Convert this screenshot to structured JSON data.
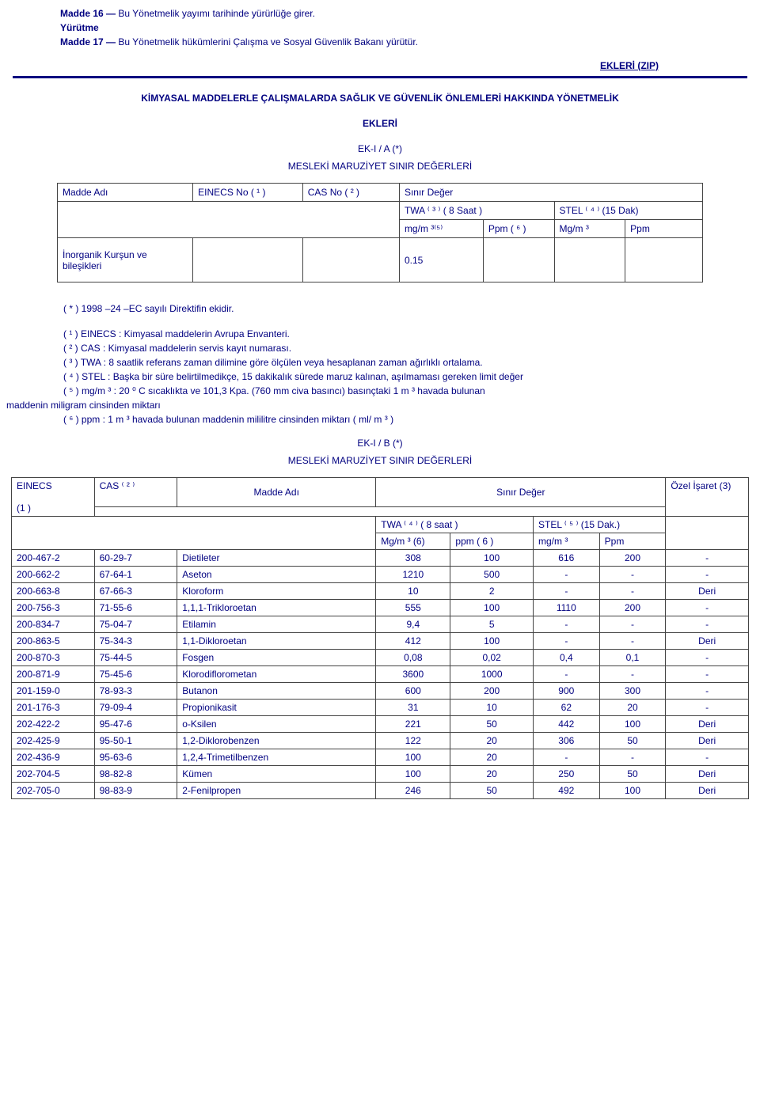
{
  "intro": {
    "p1_bold": "Madde 16 —",
    "p1_text": " Bu Yönetmelik yayımı tarihinde yürürlüğe girer.",
    "p2": "Yürütme",
    "p3_bold": "Madde 17 —",
    "p3_text": " Bu Yönetmelik hükümlerini Çalışma ve Sosyal Güvenlik Bakanı yürütür."
  },
  "zip_label": "EKLERİ (ZIP)",
  "title_main": "KİMYASAL MADDELERLE ÇALIŞMALARDA SAĞLIK VE GÜVENLİK ÖNLEMLERİ HAKKINDA YÖNETMELİK",
  "title_ekleri": "EKLERİ",
  "section_a_line1": "EK-I / A (*)",
  "section_a_line2": "MESLEKİ MARUZİYET SINIR DEĞERLERİ",
  "table_a": {
    "h_madde": "Madde Adı",
    "h_einecs": "EINECS No ( ¹ )",
    "h_cas": "CAS No ( ² )",
    "h_sinir": "Sınır Değer",
    "h_twa": "TWA ⁽ ³ ⁾ ( 8 Saat )",
    "h_stel": "STEL ⁽ ⁴ ⁾ (15 Dak)",
    "h_mgm1": "mg/m ³⁽⁵⁾",
    "h_ppm1": "Ppm ( ⁶ )",
    "h_mgm2": "Mg/m ³",
    "h_ppm2": "Ppm",
    "row_label": "İnorganik Kurşun ve bileşikleri",
    "row_val": "0.15"
  },
  "notes": {
    "n0": "( * ) 1998 –24 –EC sayılı Direktifin ekidir.",
    "n1": "( ¹ ) EINECS : Kimyasal maddelerin Avrupa Envanteri.",
    "n2": "( ² ) CAS : Kimyasal maddelerin servis kayıt numarası.",
    "n3": "( ³ ) TWA : 8 saatlik referans zaman dilimine göre ölçülen veya hesaplanan zaman ağırlıklı ortalama.",
    "n4": "( ⁴ ) STEL : Başka bir süre belirtilmedikçe, 15 dakikalık sürede maruz kalınan, aşılmaması gereken limit değer",
    "n5a": "( ⁵ ) mg/m ³ : 20 ⁰ C sıcaklıkta ve 101,3 Kpa. (760 mm civa basıncı) basınçtaki 1 m ³ havada bulunan",
    "n5b": "maddenin miligram cinsinden miktarı",
    "n6": "( ⁶ ) ppm : 1 m ³ havada bulunan maddenin mililitre cinsinden miktarı ( ml/ m ³ )"
  },
  "section_b_line1": "EK-I / B (*)",
  "section_b_line2": "MESLEKİ MARUZİYET SINIR DEĞERLERİ",
  "table_b": {
    "h_einecs": "EINECS",
    "h_einecs_sub": "(1 )",
    "h_cas": "CAS ⁽ ² ⁾",
    "h_madde": "Madde Adı",
    "h_sinir": "Sınır Değer",
    "h_ozel": "Özel İşaret (3)",
    "h_twa": "TWA ⁽ ⁴ ⁾ ( 8 saat )",
    "h_stel": "STEL ⁽ ⁵ ⁾ (15 Dak.)",
    "h_mgm1": "Mg/m ³ (6)",
    "h_ppm1": "ppm ( 6 )",
    "h_mgm2": "mg/m ³",
    "h_ppm2": "Ppm",
    "rows": [
      {
        "e": "200-467-2",
        "c": "60-29-7",
        "m": "Dietileter",
        "v1": "308",
        "v2": "100",
        "v3": "616",
        "v4": "200",
        "v5": "-"
      },
      {
        "e": "200-662-2",
        "c": "67-64-1",
        "m": "Aseton",
        "v1": "1210",
        "v2": "500",
        "v3": "-",
        "v4": "-",
        "v5": "-"
      },
      {
        "e": "200-663-8",
        "c": "67-66-3",
        "m": "Kloroform",
        "v1": "10",
        "v2": "2",
        "v3": "-",
        "v4": "-",
        "v5": "Deri"
      },
      {
        "e": "200-756-3",
        "c": "71-55-6",
        "m": "1,1,1-Trikloroetan",
        "v1": "555",
        "v2": "100",
        "v3": "1110",
        "v4": "200",
        "v5": "-"
      },
      {
        "e": "200-834-7",
        "c": "75-04-7",
        "m": "Etilamin",
        "v1": "9,4",
        "v2": "5",
        "v3": "-",
        "v4": "-",
        "v5": "-"
      },
      {
        "e": "200-863-5",
        "c": "75-34-3",
        "m": "1,1-Dikloroetan",
        "v1": "412",
        "v2": "100",
        "v3": "-",
        "v4": "-",
        "v5": "Deri"
      },
      {
        "e": "200-870-3",
        "c": "75-44-5",
        "m": "Fosgen",
        "v1": "0,08",
        "v2": "0,02",
        "v3": "0,4",
        "v4": "0,1",
        "v5": "-"
      },
      {
        "e": "200-871-9",
        "c": "75-45-6",
        "m": "Klorodiflorometan",
        "v1": "3600",
        "v2": "1000",
        "v3": "-",
        "v4": "-",
        "v5": "-"
      },
      {
        "e": "201-159-0",
        "c": "78-93-3",
        "m": "Butanon",
        "v1": "600",
        "v2": "200",
        "v3": "900",
        "v4": "300",
        "v5": "-"
      },
      {
        "e": "201-176-3",
        "c": "79-09-4",
        "m": "Propionikasit",
        "v1": "31",
        "v2": "10",
        "v3": "62",
        "v4": "20",
        "v5": "-"
      },
      {
        "e": "202-422-2",
        "c": "95-47-6",
        "m": "o-Ksilen",
        "v1": "221",
        "v2": "50",
        "v3": "442",
        "v4": "100",
        "v5": "Deri"
      },
      {
        "e": "202-425-9",
        "c": "95-50-1",
        "m": "1,2-Diklorobenzen",
        "v1": "122",
        "v2": "20",
        "v3": "306",
        "v4": "50",
        "v5": "Deri"
      },
      {
        "e": "202-436-9",
        "c": "95-63-6",
        "m": "1,2,4-Trimetilbenzen",
        "v1": "100",
        "v2": "20",
        "v3": "-",
        "v4": "-",
        "v5": "-"
      },
      {
        "e": "202-704-5",
        "c": "98-82-8",
        "m": "Kümen",
        "v1": "100",
        "v2": "20",
        "v3": "250",
        "v4": "50",
        "v5": "Deri"
      },
      {
        "e": "202-705-0",
        "c": "98-83-9",
        "m": "2-Fenilpropen",
        "v1": "246",
        "v2": "50",
        "v3": "492",
        "v4": "100",
        "v5": "Deri"
      }
    ]
  }
}
